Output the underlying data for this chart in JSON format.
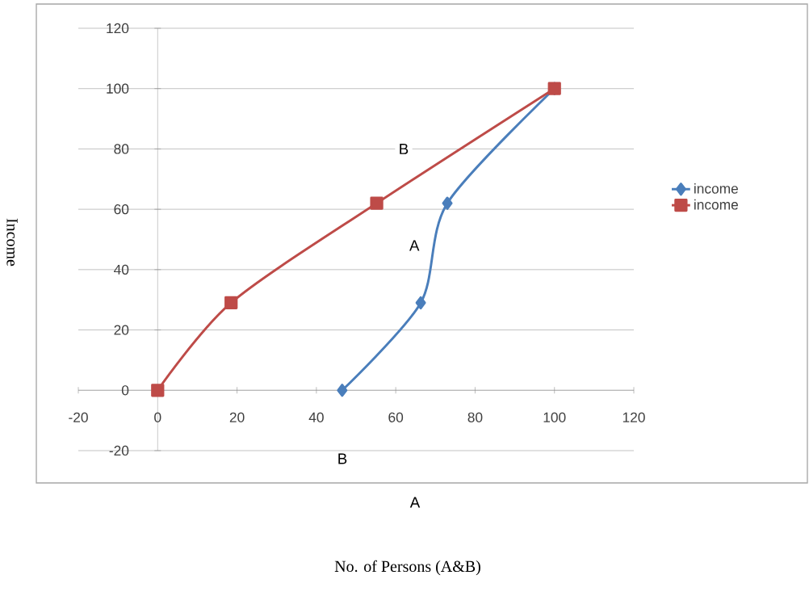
{
  "chart_data": {
    "type": "line",
    "ylabel": "Income",
    "series": [
      {
        "name": "income",
        "color": "#4a7ebb",
        "marker": "diamond",
        "x": [
          46.5,
          66.3,
          73,
          100
        ],
        "values": [
          0,
          29,
          62,
          100
        ]
      },
      {
        "name": "income",
        "color": "#be4b48",
        "marker": "square",
        "x": [
          0,
          18.5,
          55.2,
          100
        ],
        "values": [
          0,
          29,
          62,
          100
        ]
      }
    ],
    "xlim": [
      -20,
      120
    ],
    "ylim": [
      -20,
      120
    ],
    "xticks": [
      -20,
      0,
      20,
      40,
      60,
      80,
      100,
      120
    ],
    "yticks": [
      -20,
      0,
      20,
      40,
      60,
      80,
      100,
      120
    ],
    "grid": "y",
    "legend": "right",
    "annotations": [
      {
        "text": "B",
        "x": 62,
        "y": 80
      },
      {
        "text": "A",
        "x": 64.7,
        "y": 48
      },
      "B",
      "A",
      "No. of Persons (A&B)"
    ]
  }
}
